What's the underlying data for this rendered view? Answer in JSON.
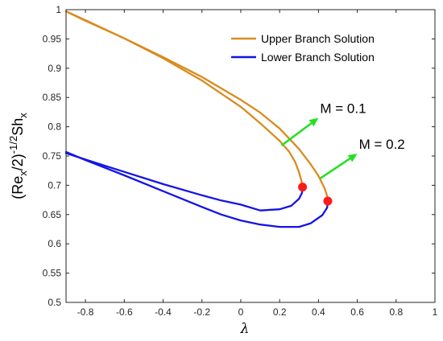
{
  "chart_data": {
    "type": "line",
    "xlabel": "λ",
    "ylabel": {
      "open": "(Re",
      "sub1": "x",
      "mid": "/2)",
      "sup": "-1/2",
      "sh": "Sh",
      "sub2": "x"
    },
    "xlim": [
      -0.9,
      1
    ],
    "ylim": [
      0.5,
      1
    ],
    "xticks": [
      "-0.8",
      "-0.6",
      "-0.4",
      "-0.2",
      "0",
      "0.2",
      "0.4",
      "0.6",
      "0.8",
      "1"
    ],
    "yticks": [
      "0.5",
      "0.55",
      "0.6",
      "0.65",
      "0.7",
      "0.75",
      "0.8",
      "0.85",
      "0.9",
      "0.95",
      "1"
    ],
    "legend": {
      "position": "top-right",
      "entries": [
        {
          "label": "Upper Branch Solution",
          "color": "#D98B1F"
        },
        {
          "label": "Lower Branch Solution",
          "color": "#1414E6"
        }
      ]
    },
    "series": [
      {
        "branch": "upper",
        "group": "M = 0.1",
        "color": "#D98B1F",
        "points": [
          [
            -0.9,
            0.997
          ],
          [
            -0.8,
            0.982
          ],
          [
            -0.6,
            0.951
          ],
          [
            -0.4,
            0.917
          ],
          [
            -0.2,
            0.879
          ],
          [
            0,
            0.834
          ],
          [
            0.1,
            0.806
          ],
          [
            0.2,
            0.776
          ],
          [
            0.25,
            0.757
          ],
          [
            0.28,
            0.74
          ],
          [
            0.3,
            0.722
          ],
          [
            0.312,
            0.708
          ],
          [
            0.318,
            0.697
          ]
        ]
      },
      {
        "branch": "upper",
        "group": "M = 0.2",
        "color": "#D98B1F",
        "points": [
          [
            -0.9,
            0.997
          ],
          [
            -0.8,
            0.981
          ],
          [
            -0.6,
            0.951
          ],
          [
            -0.4,
            0.919
          ],
          [
            -0.2,
            0.885
          ],
          [
            0,
            0.846
          ],
          [
            0.1,
            0.824
          ],
          [
            0.2,
            0.797
          ],
          [
            0.3,
            0.762
          ],
          [
            0.36,
            0.736
          ],
          [
            0.4,
            0.716
          ],
          [
            0.43,
            0.696
          ],
          [
            0.443,
            0.684
          ],
          [
            0.448,
            0.673
          ]
        ]
      },
      {
        "branch": "lower",
        "group": "M = 0.1",
        "color": "#1414E6",
        "points": [
          [
            -0.9,
            0.755
          ],
          [
            -0.8,
            0.744
          ],
          [
            -0.6,
            0.723
          ],
          [
            -0.4,
            0.702
          ],
          [
            -0.2,
            0.683
          ],
          [
            -0.1,
            0.674
          ],
          [
            0,
            0.667
          ],
          [
            0.1,
            0.657
          ],
          [
            0.2,
            0.659
          ],
          [
            0.26,
            0.665
          ],
          [
            0.3,
            0.677
          ],
          [
            0.315,
            0.687
          ],
          [
            0.318,
            0.697
          ]
        ]
      },
      {
        "branch": "lower",
        "group": "M = 0.2",
        "color": "#1414E6",
        "points": [
          [
            -0.9,
            0.757
          ],
          [
            -0.8,
            0.743
          ],
          [
            -0.6,
            0.717
          ],
          [
            -0.4,
            0.69
          ],
          [
            -0.2,
            0.663
          ],
          [
            -0.1,
            0.65
          ],
          [
            0,
            0.64
          ],
          [
            0.1,
            0.633
          ],
          [
            0.2,
            0.629
          ],
          [
            0.3,
            0.629
          ],
          [
            0.36,
            0.635
          ],
          [
            0.42,
            0.649
          ],
          [
            0.445,
            0.662
          ],
          [
            0.448,
            0.673
          ]
        ]
      }
    ],
    "critical_points": [
      {
        "group": "M = 0.1",
        "x": 0.318,
        "y": 0.697,
        "color": "#FF1A1A"
      },
      {
        "group": "M = 0.2",
        "x": 0.448,
        "y": 0.673,
        "color": "#FF1A1A"
      }
    ],
    "annotations": [
      {
        "text": "M = 0.1",
        "arrow_from": [
          0.21,
          0.768
        ],
        "arrow_to": [
          0.4,
          0.815
        ],
        "color": "#22E022"
      },
      {
        "text": "M = 0.2",
        "arrow_from": [
          0.41,
          0.712
        ],
        "arrow_to": [
          0.6,
          0.754
        ],
        "color": "#22E022"
      }
    ]
  }
}
